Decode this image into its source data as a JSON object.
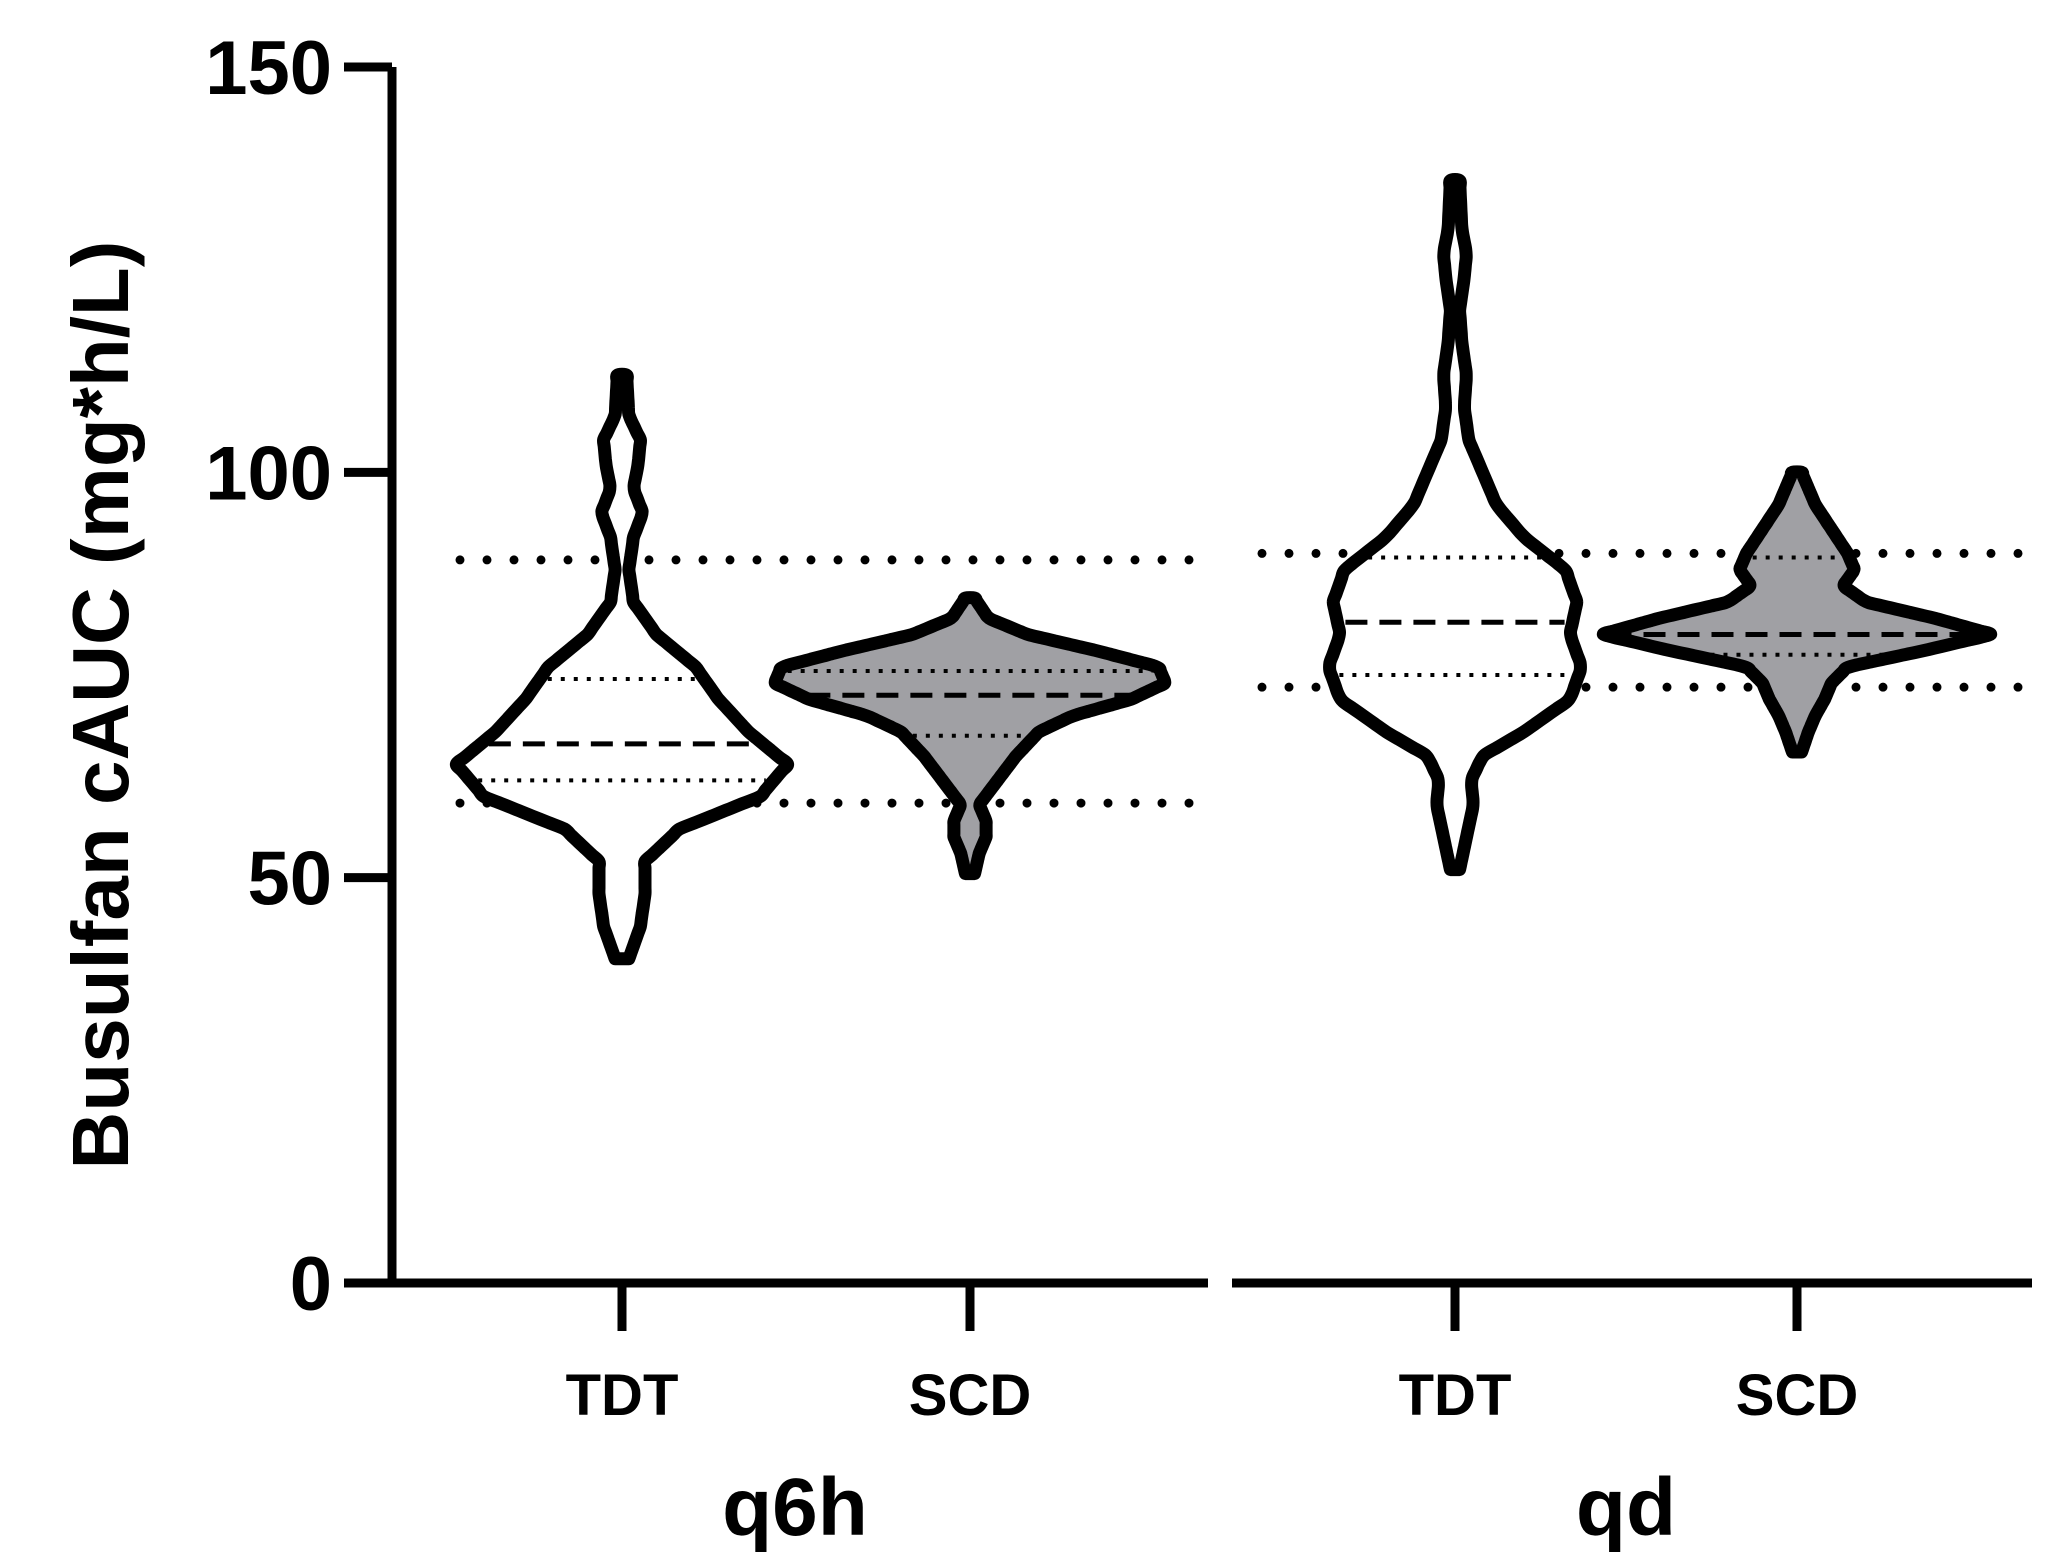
{
  "chart_data": {
    "type": "violin",
    "title": "",
    "ylabel": "Busulfan cAUC (mg*h/L)",
    "xlabel": "",
    "ylim": [
      0,
      150
    ],
    "yticks": [
      0,
      50,
      100,
      150
    ],
    "grid": false,
    "legend": "none",
    "groups": [
      {
        "name": "q6h",
        "target_range": [
          59.2,
          89.2
        ],
        "categories": [
          {
            "name": "TDT",
            "fill": "#ffffff",
            "min": 40,
            "max": 112,
            "q1": 62,
            "median": 66.5,
            "q3": 74.5,
            "profile": [
              [
                40,
                0.03
              ],
              [
                44,
                0.08
              ],
              [
                48,
                0.1
              ],
              [
                52,
                0.1
              ],
              [
                56,
                0.25
              ],
              [
                60,
                0.6
              ],
              [
                64,
                0.72
              ],
              [
                68,
                0.55
              ],
              [
                72,
                0.42
              ],
              [
                76,
                0.32
              ],
              [
                80,
                0.15
              ],
              [
                84,
                0.05
              ],
              [
                88,
                0.03
              ],
              [
                92,
                0.05
              ],
              [
                95,
                0.09
              ],
              [
                98,
                0.05
              ],
              [
                101,
                0.07
              ],
              [
                104,
                0.08
              ],
              [
                107,
                0.03
              ],
              [
                112,
                0.02
              ]
            ]
          },
          {
            "name": "SCD",
            "fill": "#a0a0a4",
            "min": 50.5,
            "max": 84.5,
            "q1": 67.5,
            "median": 72.5,
            "q3": 75.5,
            "profile": [
              [
                50.5,
                0.02
              ],
              [
                53,
                0.04
              ],
              [
                55,
                0.07
              ],
              [
                57,
                0.07
              ],
              [
                59,
                0.04
              ],
              [
                62,
                0.12
              ],
              [
                65,
                0.2
              ],
              [
                68,
                0.3
              ],
              [
                70,
                0.45
              ],
              [
                72,
                0.7
              ],
              [
                74,
                0.85
              ],
              [
                76,
                0.82
              ],
              [
                78,
                0.55
              ],
              [
                80,
                0.25
              ],
              [
                82,
                0.08
              ],
              [
                84.5,
                0.02
              ]
            ]
          }
        ]
      },
      {
        "name": "qd",
        "target_range": [
          73.5,
          90
        ],
        "categories": [
          {
            "name": "TDT",
            "fill": "#ffffff",
            "min": 51,
            "max": 136,
            "q1": 75,
            "median": 81.5,
            "q3": 89.5,
            "profile": [
              [
                51,
                0.02
              ],
              [
                55,
                0.05
              ],
              [
                59,
                0.08
              ],
              [
                62,
                0.07
              ],
              [
                65,
                0.12
              ],
              [
                68,
                0.3
              ],
              [
                72,
                0.5
              ],
              [
                76,
                0.55
              ],
              [
                80,
                0.5
              ],
              [
                84,
                0.53
              ],
              [
                88,
                0.48
              ],
              [
                92,
                0.3
              ],
              [
                96,
                0.18
              ],
              [
                100,
                0.12
              ],
              [
                104,
                0.06
              ],
              [
                108,
                0.04
              ],
              [
                112,
                0.05
              ],
              [
                116,
                0.03
              ],
              [
                120,
                0.02
              ],
              [
                124,
                0.04
              ],
              [
                127,
                0.05
              ],
              [
                130,
                0.03
              ],
              [
                136,
                0.02
              ]
            ]
          },
          {
            "name": "SCD",
            "fill": "#a0a0a4",
            "min": 65.5,
            "max": 100,
            "q1": 77.5,
            "median": 80,
            "q3": 89.5,
            "profile": [
              [
                65.5,
                0.02
              ],
              [
                68,
                0.05
              ],
              [
                70,
                0.08
              ],
              [
                72,
                0.12
              ],
              [
                74,
                0.15
              ],
              [
                76,
                0.22
              ],
              [
                78,
                0.55
              ],
              [
                80,
                0.85
              ],
              [
                82,
                0.6
              ],
              [
                84,
                0.3
              ],
              [
                86,
                0.2
              ],
              [
                88,
                0.25
              ],
              [
                90,
                0.22
              ],
              [
                93,
                0.15
              ],
              [
                96,
                0.08
              ],
              [
                100,
                0.02
              ]
            ]
          }
        ]
      }
    ]
  }
}
